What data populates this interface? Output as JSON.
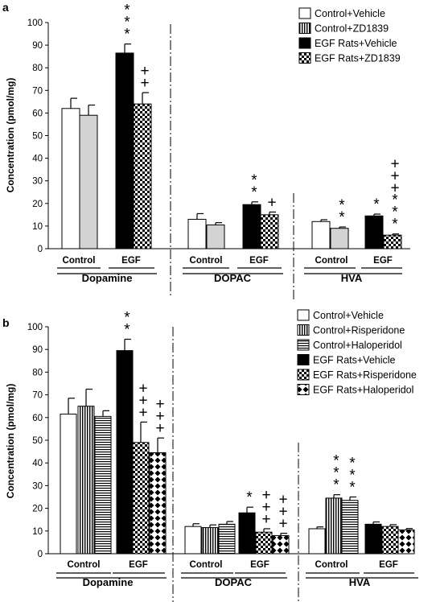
{
  "panels": [
    {
      "panel_label": "a",
      "ylabel": "Concentration (pmol/mg)",
      "legend": [
        {
          "label": "Control+Vehicle",
          "pattern": "white"
        },
        {
          "label": "Control+ZD1839",
          "pattern": "vstripe"
        },
        {
          "label": "EGF Rats+Vehicle",
          "pattern": "black"
        },
        {
          "label": "EGF Rats+ZD1839",
          "pattern": "check"
        }
      ],
      "groups": [
        {
          "name": "Dopamine",
          "sub": [
            "Control",
            "EGF"
          ]
        },
        {
          "name": "DOPAC",
          "sub": [
            "Control",
            "EGF"
          ]
        },
        {
          "name": "HVA",
          "sub": [
            "Control",
            "EGF"
          ]
        }
      ]
    },
    {
      "panel_label": "b",
      "ylabel": "Concentration (pmol/mg)",
      "legend": [
        {
          "label": "Control+Vehicle",
          "pattern": "white"
        },
        {
          "label": "Control+Risperidone",
          "pattern": "vstripe"
        },
        {
          "label": "Control+Haloperidol",
          "pattern": "hstripe"
        },
        {
          "label": "EGF Rats+Vehicle",
          "pattern": "black"
        },
        {
          "label": "EGF Rats+Risperidone",
          "pattern": "check"
        },
        {
          "label": "EGF Rats+Haloperidol",
          "pattern": "diamond"
        }
      ],
      "groups": [
        {
          "name": "Dopamine",
          "sub": [
            "Control",
            "EGF"
          ]
        },
        {
          "name": "DOPAC",
          "sub": [
            "Control",
            "EGF"
          ]
        },
        {
          "name": "HVA",
          "sub": [
            "Control",
            "EGF"
          ]
        }
      ]
    }
  ],
  "chart_data": [
    {
      "type": "bar",
      "ylabel": "Concentration (pmol/mg)",
      "ylim": [
        0,
        100
      ],
      "yticks": [
        0,
        10,
        20,
        30,
        40,
        50,
        60,
        70,
        80,
        90,
        100
      ],
      "categories": [
        "Dopamine",
        "DOPAC",
        "HVA"
      ],
      "series": [
        {
          "name": "Control+Vehicle",
          "values": [
            62,
            13,
            12
          ],
          "errors": [
            4.5,
            2.5,
            0.8
          ],
          "annotations": [
            "",
            "",
            ""
          ]
        },
        {
          "name": "Control+ZD1839",
          "values": [
            59,
            10.5,
            9
          ],
          "errors": [
            4.5,
            1,
            0.6
          ],
          "annotations": [
            "",
            "",
            "**"
          ]
        },
        {
          "name": "EGF Rats+Vehicle",
          "values": [
            86.5,
            19.5,
            14.5
          ],
          "errors": [
            4,
            1.2,
            0.8
          ],
          "annotations": [
            "***",
            "**",
            "*"
          ]
        },
        {
          "name": "EGF Rats+ZD1839",
          "values": [
            64,
            15,
            6
          ],
          "errors": [
            5,
            1.2,
            0.5
          ],
          "annotations": [
            "++",
            "+",
            "+++ ***"
          ]
        }
      ]
    },
    {
      "type": "bar",
      "ylabel": "Concentration (pmol/mg)",
      "ylim": [
        0,
        100
      ],
      "yticks": [
        0,
        10,
        20,
        30,
        40,
        50,
        60,
        70,
        80,
        90,
        100
      ],
      "categories": [
        "Dopamine",
        "DOPAC",
        "HVA"
      ],
      "series": [
        {
          "name": "Control+Vehicle",
          "values": [
            61.5,
            12,
            11
          ],
          "errors": [
            7,
            1.2,
            0.8
          ],
          "annotations": [
            "",
            "",
            ""
          ]
        },
        {
          "name": "Control+Risperidone",
          "values": [
            65,
            11.5,
            24.5
          ],
          "errors": [
            7.5,
            1.2,
            1.5
          ],
          "annotations": [
            "",
            "",
            "***"
          ]
        },
        {
          "name": "Control+Haloperidol",
          "values": [
            60.5,
            13,
            23.5
          ],
          "errors": [
            2.5,
            1.2,
            1.5
          ],
          "annotations": [
            "",
            "",
            "***"
          ]
        },
        {
          "name": "EGF Rats+Vehicle",
          "values": [
            89.5,
            18,
            13
          ],
          "errors": [
            5,
            2.5,
            1
          ],
          "annotations": [
            "**",
            "*",
            ""
          ]
        },
        {
          "name": "EGF Rats+Risperidone",
          "values": [
            49,
            9.5,
            12
          ],
          "errors": [
            9,
            1.5,
            0.8
          ],
          "annotations": [
            "+++",
            "+++",
            ""
          ]
        },
        {
          "name": "EGF Rats+Haloperidol",
          "values": [
            44.5,
            8,
            10.5
          ],
          "errors": [
            6.5,
            1,
            0.6
          ],
          "annotations": [
            "+++",
            "+++",
            ""
          ]
        }
      ]
    }
  ]
}
